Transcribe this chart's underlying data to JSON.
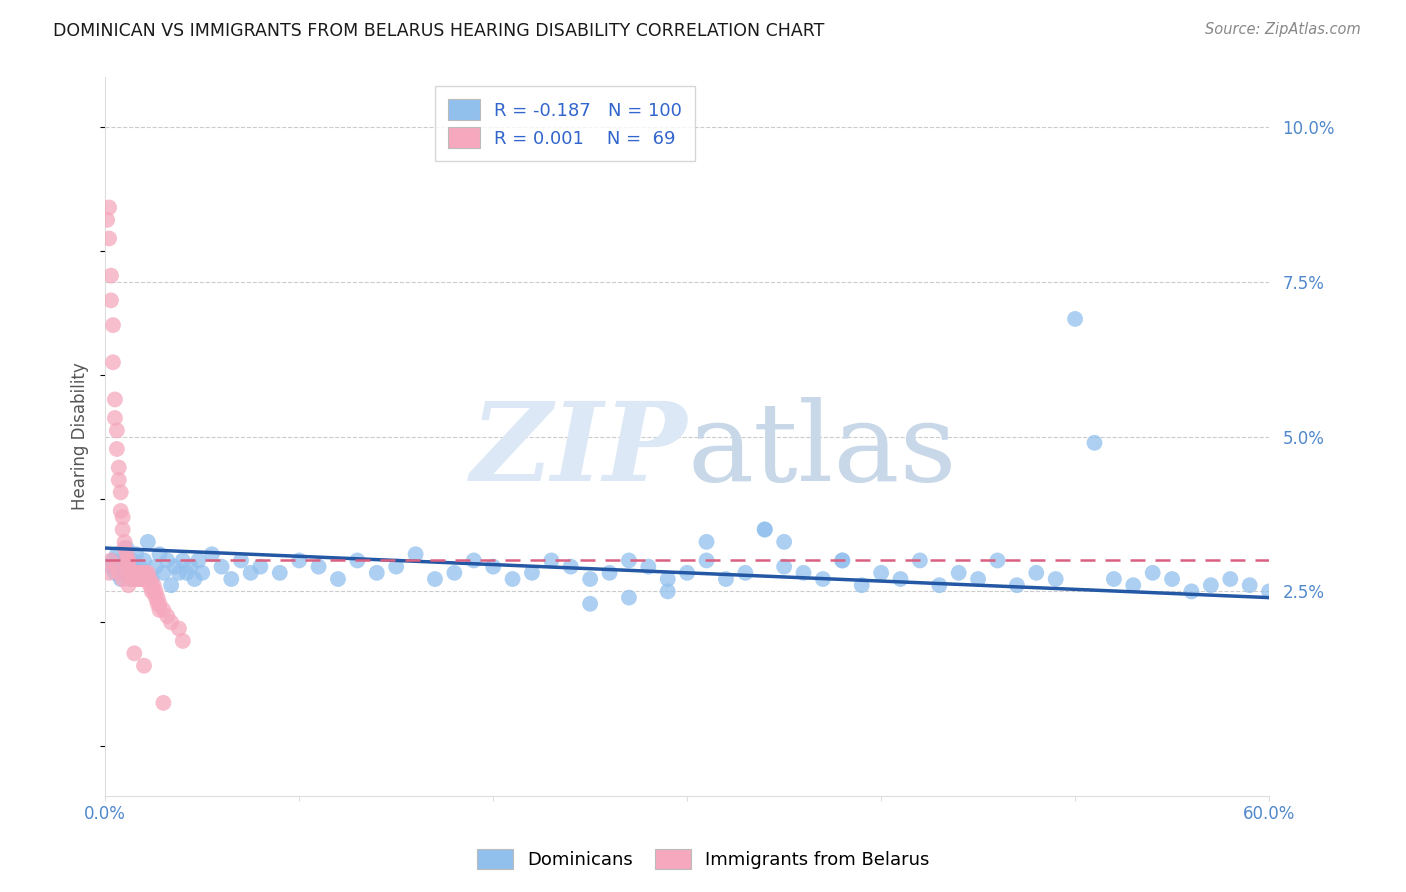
{
  "title": "DOMINICAN VS IMMIGRANTS FROM BELARUS HEARING DISABILITY CORRELATION CHART",
  "source": "Source: ZipAtlas.com",
  "ylabel": "Hearing Disability",
  "watermark": "ZIPatlas",
  "xlim": [
    0.0,
    0.6
  ],
  "ylim": [
    -0.008,
    0.108
  ],
  "xticks": [
    0.0,
    0.1,
    0.2,
    0.3,
    0.4,
    0.5,
    0.6
  ],
  "xticklabels": [
    "0.0%",
    "",
    "",
    "",
    "",
    "",
    "60.0%"
  ],
  "yticks_right": [
    0.025,
    0.05,
    0.075,
    0.1
  ],
  "yticklabels_right": [
    "2.5%",
    "5.0%",
    "7.5%",
    "10.0%"
  ],
  "legend_R_blue": "-0.187",
  "legend_N_blue": "100",
  "legend_R_pink": "0.001",
  "legend_N_pink": "69",
  "blue_color": "#92C0ED",
  "pink_color": "#F5A8BE",
  "blue_line_color": "#2457A4",
  "pink_line_color": "#D96080",
  "grid_color": "#CCCCCC",
  "blue_line_y0": 0.032,
  "blue_line_y1": 0.024,
  "pink_line_y0": 0.03,
  "pink_line_y1": 0.03,
  "dom_x": [
    0.003,
    0.004,
    0.005,
    0.006,
    0.007,
    0.008,
    0.009,
    0.01,
    0.011,
    0.012,
    0.013,
    0.014,
    0.015,
    0.016,
    0.017,
    0.018,
    0.019,
    0.02,
    0.022,
    0.024,
    0.026,
    0.028,
    0.03,
    0.032,
    0.034,
    0.036,
    0.038,
    0.04,
    0.042,
    0.044,
    0.046,
    0.048,
    0.05,
    0.055,
    0.06,
    0.065,
    0.07,
    0.075,
    0.08,
    0.09,
    0.1,
    0.11,
    0.12,
    0.13,
    0.14,
    0.15,
    0.16,
    0.17,
    0.18,
    0.19,
    0.2,
    0.21,
    0.22,
    0.23,
    0.24,
    0.25,
    0.26,
    0.27,
    0.28,
    0.29,
    0.3,
    0.31,
    0.32,
    0.33,
    0.34,
    0.35,
    0.36,
    0.37,
    0.38,
    0.39,
    0.4,
    0.41,
    0.42,
    0.43,
    0.44,
    0.45,
    0.46,
    0.47,
    0.48,
    0.49,
    0.5,
    0.51,
    0.52,
    0.53,
    0.54,
    0.55,
    0.56,
    0.57,
    0.58,
    0.59,
    0.6,
    0.38,
    0.35,
    0.34,
    0.31,
    0.29,
    0.27,
    0.25
  ],
  "dom_y": [
    0.029,
    0.03,
    0.028,
    0.031,
    0.029,
    0.027,
    0.03,
    0.028,
    0.032,
    0.029,
    0.027,
    0.03,
    0.028,
    0.031,
    0.027,
    0.029,
    0.028,
    0.03,
    0.033,
    0.027,
    0.029,
    0.031,
    0.028,
    0.03,
    0.026,
    0.029,
    0.028,
    0.03,
    0.028,
    0.029,
    0.027,
    0.03,
    0.028,
    0.031,
    0.029,
    0.027,
    0.03,
    0.028,
    0.029,
    0.028,
    0.03,
    0.029,
    0.027,
    0.03,
    0.028,
    0.029,
    0.031,
    0.027,
    0.028,
    0.03,
    0.029,
    0.027,
    0.028,
    0.03,
    0.029,
    0.027,
    0.028,
    0.03,
    0.029,
    0.027,
    0.028,
    0.03,
    0.027,
    0.028,
    0.035,
    0.029,
    0.028,
    0.027,
    0.03,
    0.026,
    0.028,
    0.027,
    0.03,
    0.026,
    0.028,
    0.027,
    0.03,
    0.026,
    0.028,
    0.027,
    0.069,
    0.049,
    0.027,
    0.026,
    0.028,
    0.027,
    0.025,
    0.026,
    0.027,
    0.026,
    0.025,
    0.03,
    0.033,
    0.035,
    0.033,
    0.025,
    0.024,
    0.023
  ],
  "bel_x": [
    0.001,
    0.002,
    0.002,
    0.003,
    0.003,
    0.004,
    0.004,
    0.005,
    0.005,
    0.006,
    0.006,
    0.007,
    0.007,
    0.008,
    0.008,
    0.009,
    0.009,
    0.01,
    0.01,
    0.011,
    0.011,
    0.012,
    0.012,
    0.013,
    0.013,
    0.014,
    0.014,
    0.015,
    0.015,
    0.016,
    0.016,
    0.017,
    0.017,
    0.018,
    0.018,
    0.019,
    0.019,
    0.02,
    0.02,
    0.021,
    0.021,
    0.022,
    0.022,
    0.023,
    0.023,
    0.024,
    0.024,
    0.025,
    0.025,
    0.026,
    0.026,
    0.027,
    0.027,
    0.028,
    0.028,
    0.03,
    0.032,
    0.034,
    0.038,
    0.04,
    0.002,
    0.003,
    0.005,
    0.007,
    0.009,
    0.012,
    0.015,
    0.02,
    0.03
  ],
  "bel_y": [
    0.085,
    0.087,
    0.082,
    0.076,
    0.072,
    0.068,
    0.062,
    0.056,
    0.053,
    0.051,
    0.048,
    0.045,
    0.043,
    0.041,
    0.038,
    0.037,
    0.035,
    0.033,
    0.032,
    0.031,
    0.03,
    0.03,
    0.029,
    0.028,
    0.028,
    0.027,
    0.028,
    0.027,
    0.028,
    0.027,
    0.028,
    0.027,
    0.028,
    0.027,
    0.028,
    0.027,
    0.028,
    0.027,
    0.028,
    0.027,
    0.028,
    0.027,
    0.028,
    0.027,
    0.026,
    0.026,
    0.025,
    0.026,
    0.025,
    0.025,
    0.024,
    0.024,
    0.023,
    0.023,
    0.022,
    0.022,
    0.021,
    0.02,
    0.019,
    0.017,
    0.028,
    0.03,
    0.029,
    0.028,
    0.027,
    0.026,
    0.015,
    0.013,
    0.007
  ]
}
